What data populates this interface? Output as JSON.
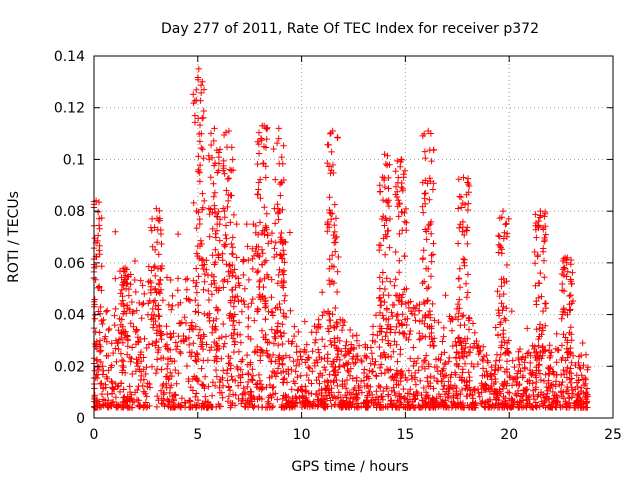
{
  "chart_data": {
    "type": "scatter",
    "title": "Day 277 of 2011, Rate Of TEC Index for receiver p372",
    "xlabel": "GPS time / hours",
    "ylabel": "ROTI / TECUs",
    "xlim": [
      0,
      25
    ],
    "ylim": [
      0,
      0.14
    ],
    "x_ticks": [
      0,
      5,
      10,
      15,
      20,
      25
    ],
    "y_ticks": [
      0,
      0.02,
      0.04,
      0.06,
      0.08,
      0.1,
      0.12,
      0.14
    ],
    "grid": true,
    "marker": "+",
    "color": "#ff0000",
    "peaks": [
      {
        "x": 0.1,
        "y": 0.084
      },
      {
        "x": 1.5,
        "y": 0.058
      },
      {
        "x": 3.0,
        "y": 0.081
      },
      {
        "x": 5.05,
        "y": 0.135
      },
      {
        "x": 5.8,
        "y": 0.112
      },
      {
        "x": 6.5,
        "y": 0.111
      },
      {
        "x": 8.1,
        "y": 0.113
      },
      {
        "x": 8.9,
        "y": 0.112
      },
      {
        "x": 11.5,
        "y": 0.111
      },
      {
        "x": 14.0,
        "y": 0.102
      },
      {
        "x": 14.8,
        "y": 0.1
      },
      {
        "x": 16.1,
        "y": 0.111
      },
      {
        "x": 17.8,
        "y": 0.093
      },
      {
        "x": 19.7,
        "y": 0.08
      },
      {
        "x": 21.5,
        "y": 0.08
      },
      {
        "x": 22.8,
        "y": 0.062
      }
    ],
    "activity_profile": [
      {
        "x": 0.0,
        "y": 0.012
      },
      {
        "x": 1.0,
        "y": 0.025
      },
      {
        "x": 2.0,
        "y": 0.028
      },
      {
        "x": 3.0,
        "y": 0.03
      },
      {
        "x": 4.0,
        "y": 0.025
      },
      {
        "x": 5.0,
        "y": 0.03
      },
      {
        "x": 6.0,
        "y": 0.04
      },
      {
        "x": 7.0,
        "y": 0.03
      },
      {
        "x": 8.0,
        "y": 0.04
      },
      {
        "x": 9.0,
        "y": 0.035
      },
      {
        "x": 10.0,
        "y": 0.012
      },
      {
        "x": 11.0,
        "y": 0.02
      },
      {
        "x": 12.0,
        "y": 0.02
      },
      {
        "x": 13.0,
        "y": 0.012
      },
      {
        "x": 14.0,
        "y": 0.025
      },
      {
        "x": 15.0,
        "y": 0.025
      },
      {
        "x": 16.0,
        "y": 0.02
      },
      {
        "x": 17.0,
        "y": 0.018
      },
      {
        "x": 18.0,
        "y": 0.02
      },
      {
        "x": 19.0,
        "y": 0.01
      },
      {
        "x": 20.0,
        "y": 0.012
      },
      {
        "x": 21.0,
        "y": 0.012
      },
      {
        "x": 21.5,
        "y": 0.02
      },
      {
        "x": 22.0,
        "y": 0.012
      },
      {
        "x": 23.0,
        "y": 0.012
      },
      {
        "x": 23.8,
        "y": 0.012
      }
    ]
  }
}
